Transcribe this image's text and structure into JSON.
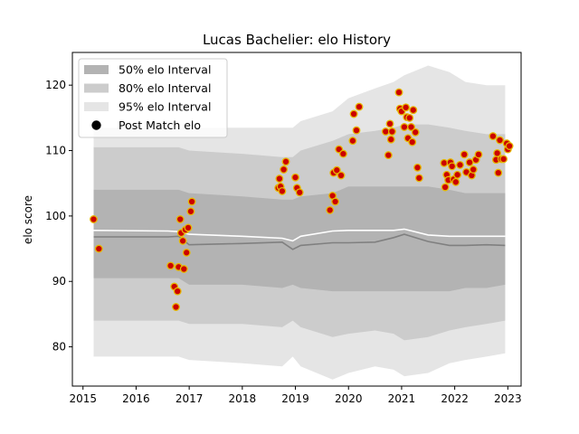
{
  "chart_data": {
    "type": "line",
    "title": "Lucas Bachelier: elo History",
    "xlabel": "",
    "ylabel": "elo score",
    "xlim": [
      2014.8,
      2023.25
    ],
    "ylim": [
      74,
      125
    ],
    "x_ticks": [
      2015,
      2016,
      2017,
      2018,
      2019,
      2020,
      2021,
      2022,
      2023
    ],
    "y_ticks": [
      80,
      90,
      100,
      110,
      120
    ],
    "grid": false,
    "legend_position": "top-left",
    "legend": [
      {
        "label": "50% elo Interval",
        "color": "#b3b3b3"
      },
      {
        "label": "80% elo Interval",
        "color": "#cccccc"
      },
      {
        "label": "95% elo Interval",
        "color": "#e5e5e5"
      },
      {
        "label": "Post Match elo",
        "color": "#000000"
      }
    ],
    "x": [
      2015.2,
      2016.6,
      2016.8,
      2017.0,
      2018.0,
      2018.75,
      2018.95,
      2019.1,
      2019.7,
      2020.0,
      2020.5,
      2020.85,
      2021.05,
      2021.5,
      2021.9,
      2022.2,
      2022.6,
      2022.95
    ],
    "interval_95": {
      "upper": [
        113.5,
        113.5,
        113.5,
        113.5,
        113.5,
        113.5,
        113.5,
        114.5,
        116.0,
        118.0,
        119.5,
        120.5,
        121.5,
        123.0,
        122.0,
        120.5,
        120.0,
        120.0
      ],
      "lower": [
        78.5,
        78.5,
        78.5,
        78.0,
        77.5,
        77.0,
        78.5,
        77.0,
        75.0,
        76.0,
        77.0,
        76.5,
        75.5,
        76.0,
        77.5,
        78.0,
        78.5,
        79.0
      ]
    },
    "interval_80": {
      "upper": [
        110.5,
        110.5,
        110.5,
        110.0,
        109.5,
        109.0,
        109.0,
        110.0,
        111.5,
        112.5,
        113.0,
        113.5,
        114.0,
        114.0,
        113.5,
        113.0,
        112.5,
        112.5
      ]
    },
    "interval_80_lower": [
      84.0,
      84.0,
      84.0,
      83.5,
      83.5,
      83.0,
      84.0,
      83.0,
      81.5,
      82.0,
      82.5,
      82.0,
      81.0,
      81.5,
      82.5,
      83.0,
      83.5,
      84.0
    ],
    "interval_50": {
      "upper": [
        104.0,
        104.0,
        104.0,
        103.5,
        103.0,
        102.5,
        102.5,
        103.0,
        103.5,
        104.5,
        104.5,
        104.5,
        104.5,
        104.5,
        104.0,
        103.5,
        103.5,
        103.5
      ],
      "lower": [
        90.5,
        90.5,
        90.5,
        89.5,
        89.5,
        89.0,
        89.5,
        89.0,
        88.5,
        88.5,
        88.5,
        88.5,
        88.5,
        88.5,
        88.5,
        89.0,
        89.0,
        89.5
      ]
    },
    "mean_line": [
      97.8,
      97.7,
      97.6,
      97.2,
      96.9,
      96.6,
      96.2,
      96.9,
      97.7,
      97.8,
      97.8,
      97.8,
      98.0,
      97.1,
      96.9,
      96.9,
      96.9,
      96.9
    ],
    "median_line": [
      96.8,
      96.8,
      96.9,
      95.6,
      95.8,
      96.0,
      94.9,
      95.5,
      95.9,
      95.9,
      96.0,
      96.7,
      97.2,
      96.1,
      95.5,
      95.5,
      95.6,
      95.5
    ],
    "post_match_elo": [
      [
        2015.2,
        99.5
      ],
      [
        2015.3,
        95.0
      ],
      [
        2016.65,
        92.4
      ],
      [
        2016.72,
        89.2
      ],
      [
        2016.75,
        86.1
      ],
      [
        2016.78,
        88.5
      ],
      [
        2016.8,
        92.2
      ],
      [
        2016.83,
        99.5
      ],
      [
        2016.85,
        97.4
      ],
      [
        2016.88,
        96.2
      ],
      [
        2016.9,
        91.9
      ],
      [
        2016.93,
        97.9
      ],
      [
        2016.95,
        94.4
      ],
      [
        2016.98,
        98.2
      ],
      [
        2017.03,
        100.7
      ],
      [
        2017.05,
        102.2
      ],
      [
        2018.68,
        104.3
      ],
      [
        2018.7,
        105.7
      ],
      [
        2018.72,
        104.5
      ],
      [
        2018.75,
        103.8
      ],
      [
        2018.78,
        107.1
      ],
      [
        2018.82,
        108.3
      ],
      [
        2019.0,
        105.9
      ],
      [
        2019.03,
        104.3
      ],
      [
        2019.08,
        103.6
      ],
      [
        2019.65,
        100.9
      ],
      [
        2019.7,
        103.1
      ],
      [
        2019.72,
        106.6
      ],
      [
        2019.75,
        102.2
      ],
      [
        2019.78,
        107.0
      ],
      [
        2019.82,
        110.2
      ],
      [
        2019.86,
        106.2
      ],
      [
        2019.9,
        109.5
      ],
      [
        2020.08,
        111.5
      ],
      [
        2020.1,
        115.6
      ],
      [
        2020.15,
        113.1
      ],
      [
        2020.2,
        116.7
      ],
      [
        2020.7,
        112.9
      ],
      [
        2020.75,
        109.3
      ],
      [
        2020.78,
        114.1
      ],
      [
        2020.8,
        111.7
      ],
      [
        2020.82,
        112.9
      ],
      [
        2020.95,
        118.9
      ],
      [
        2020.97,
        116.4
      ],
      [
        2021.0,
        116.0
      ],
      [
        2021.05,
        113.6
      ],
      [
        2021.08,
        116.6
      ],
      [
        2021.1,
        115.1
      ],
      [
        2021.12,
        111.9
      ],
      [
        2021.15,
        115.0
      ],
      [
        2021.18,
        113.6
      ],
      [
        2021.2,
        111.3
      ],
      [
        2021.22,
        116.2
      ],
      [
        2021.26,
        112.8
      ],
      [
        2021.3,
        107.4
      ],
      [
        2021.33,
        105.8
      ],
      [
        2021.8,
        108.1
      ],
      [
        2021.82,
        104.4
      ],
      [
        2021.85,
        106.3
      ],
      [
        2021.88,
        105.5
      ],
      [
        2021.92,
        108.2
      ],
      [
        2021.95,
        107.6
      ],
      [
        2021.98,
        105.6
      ],
      [
        2022.02,
        105.2
      ],
      [
        2022.05,
        106.3
      ],
      [
        2022.1,
        107.8
      ],
      [
        2022.18,
        109.4
      ],
      [
        2022.22,
        106.7
      ],
      [
        2022.28,
        108.2
      ],
      [
        2022.32,
        106.2
      ],
      [
        2022.35,
        107.1
      ],
      [
        2022.4,
        108.6
      ],
      [
        2022.45,
        109.4
      ],
      [
        2022.72,
        112.2
      ],
      [
        2022.78,
        108.6
      ],
      [
        2022.8,
        109.6
      ],
      [
        2022.82,
        106.6
      ],
      [
        2022.85,
        111.6
      ],
      [
        2022.88,
        108.7
      ],
      [
        2022.92,
        108.7
      ],
      [
        2022.98,
        111.1
      ],
      [
        2023.0,
        110.2
      ],
      [
        2023.03,
        110.7
      ]
    ],
    "colors": {
      "band_95": "#e5e5e5",
      "band_80": "#cccccc",
      "band_50": "#b3b3b3",
      "mean_line": "#ffffff",
      "median_line": "#808080",
      "marker_fill": "#cc0000",
      "marker_edge": "#e6b800"
    }
  }
}
